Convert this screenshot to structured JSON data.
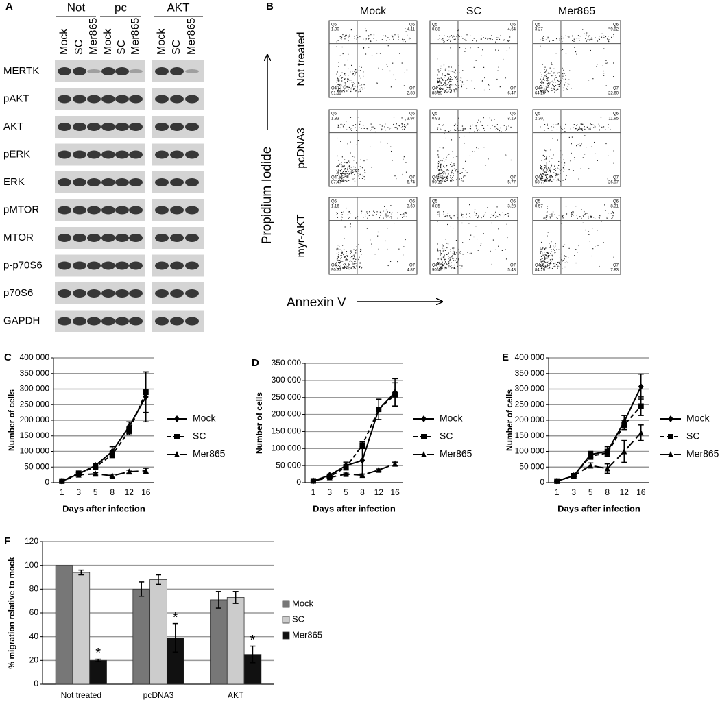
{
  "blot": {
    "label": "A",
    "groups": [
      "Not",
      "pc",
      "AKT"
    ],
    "lanes": [
      "Mock",
      "SC",
      "Mer865",
      "Mock",
      "SC",
      "Mer865",
      "Mock",
      "SC",
      "Mer865"
    ],
    "proteins": [
      "MERTK",
      "pAKT",
      "AKT",
      "pERK",
      "ERK",
      "pMTOR",
      "MTOR",
      "p-p70S6",
      "p70S6",
      "GAPDH"
    ]
  },
  "flow": {
    "label": "B",
    "columns": [
      "Mock",
      "SC",
      "Mer865"
    ],
    "rows": [
      "Not treated",
      "pcDNA3",
      "myr-AKT"
    ],
    "y_label": "Propidium Iodide",
    "x_label": "Annexin V",
    "quadrant_names": [
      "Q5",
      "Q6",
      "Q4",
      "Q7"
    ],
    "plots": [
      [
        [
          "1.90",
          "4.11",
          "91.11",
          "2.88"
        ],
        [
          "0.88",
          "4.64",
          "88.39",
          "6.47"
        ],
        [
          "3.27",
          "9.82",
          "64.26",
          "22.60"
        ]
      ],
      [
        [
          "1.83",
          "3.97",
          "87.47",
          "6.74"
        ],
        [
          "0.93",
          "3.19",
          "90.11",
          "5.77"
        ],
        [
          "2.30",
          "11.95",
          "58.77",
          "26.97"
        ]
      ],
      [
        [
          "1.16",
          "3.60",
          "90.37",
          "4.87"
        ],
        [
          "0.85",
          "3.23",
          "90.49",
          "5.43"
        ],
        [
          "0.57",
          "8.31",
          "84.29",
          "7.83"
        ]
      ]
    ]
  },
  "chart_data": [
    {
      "type": "line",
      "label": "C",
      "y_label": "Number of cells",
      "x_label": "Days after infection",
      "categories": [
        "1",
        "3",
        "5",
        "8",
        "12",
        "16"
      ],
      "ylim": [
        0,
        400000
      ],
      "yticks": [
        0,
        {
          "value": 50000,
          "label": "50 000"
        },
        {
          "value": 100000,
          "label": "100 000"
        },
        {
          "value": 150000,
          "label": "150 000"
        },
        {
          "value": 200000,
          "label": "200 000"
        },
        {
          "value": 250000,
          "label": "250 000"
        },
        {
          "value": 300000,
          "label": "300 000"
        },
        {
          "value": 350000,
          "label": "350 000"
        },
        {
          "value": 400000,
          "label": "400 000"
        }
      ],
      "grid": true,
      "series": [
        {
          "name": "Mock",
          "color": "#000000",
          "dash": "solid",
          "marker": "diamond",
          "values": [
            5000,
            28000,
            55000,
            100000,
            180000,
            275000
          ],
          "errors": [
            1000,
            4000,
            5000,
            15000,
            15000,
            80000
          ]
        },
        {
          "name": "SC",
          "color": "#000000",
          "dash": "dashed",
          "marker": "square",
          "values": [
            5000,
            30000,
            50000,
            90000,
            165000,
            290000
          ],
          "errors": [
            1000,
            3000,
            5000,
            10000,
            12000,
            65000
          ]
        },
        {
          "name": "Mer865",
          "color": "#000000",
          "dash": "long-dash",
          "marker": "triangle",
          "values": [
            5000,
            25000,
            28000,
            22000,
            35000,
            38000
          ],
          "errors": [
            1000,
            3000,
            4000,
            5000,
            5000,
            8000
          ]
        }
      ]
    },
    {
      "type": "line",
      "label": "D",
      "y_label": "Number of cells",
      "x_label": "Days after infection",
      "categories": [
        "1",
        "3",
        "5",
        "8",
        "12",
        "16"
      ],
      "ylim": [
        0,
        350000
      ],
      "yticks": [
        0,
        {
          "value": 50000,
          "label": "50 000"
        },
        {
          "value": 100000,
          "label": "100 000"
        },
        {
          "value": 150000,
          "label": "150 000"
        },
        {
          "value": 200000,
          "label": "200 000"
        },
        {
          "value": 250000,
          "label": "250 000"
        },
        {
          "value": 300000,
          "label": "300 000"
        },
        {
          "value": 350000,
          "label": "350 000"
        }
      ],
      "grid": true,
      "series": [
        {
          "name": "Mock",
          "color": "#000000",
          "dash": "solid",
          "marker": "diamond",
          "values": [
            5000,
            22000,
            50000,
            65000,
            215000,
            265000
          ],
          "errors": [
            1000,
            3000,
            10000,
            40000,
            30000,
            40000
          ]
        },
        {
          "name": "SC",
          "color": "#000000",
          "dash": "dashed",
          "marker": "square",
          "values": [
            5000,
            18000,
            45000,
            110000,
            215000,
            258000
          ],
          "errors": [
            1000,
            3000,
            8000,
            10000,
            30000,
            35000
          ]
        },
        {
          "name": "Mer865",
          "color": "#000000",
          "dash": "long-dash",
          "marker": "triangle",
          "values": [
            5000,
            15000,
            25000,
            22000,
            37000,
            55000
          ],
          "errors": [
            1000,
            2000,
            3000,
            3000,
            3000,
            5000
          ]
        }
      ]
    },
    {
      "type": "line",
      "label": "E",
      "y_label": "Number of cells",
      "x_label": "Days after infection",
      "categories": [
        "1",
        "3",
        "5",
        "8",
        "12",
        "16"
      ],
      "ylim": [
        0,
        400000
      ],
      "yticks": [
        0,
        {
          "value": 50000,
          "label": "50 000"
        },
        {
          "value": 100000,
          "label": "100 000"
        },
        {
          "value": 150000,
          "label": "150 000"
        },
        {
          "value": 200000,
          "label": "200 000"
        },
        {
          "value": 250000,
          "label": "250 000"
        },
        {
          "value": 300000,
          "label": "300 000"
        },
        {
          "value": 350000,
          "label": "350 000"
        },
        {
          "value": 400000,
          "label": "400 000"
        }
      ],
      "grid": true,
      "series": [
        {
          "name": "Mock",
          "color": "#000000",
          "dash": "solid",
          "marker": "diamond",
          "values": [
            5000,
            22000,
            90000,
            100000,
            195000,
            308000
          ],
          "errors": [
            1000,
            3000,
            10000,
            15000,
            20000,
            40000
          ]
        },
        {
          "name": "SC",
          "color": "#000000",
          "dash": "dashed",
          "marker": "square",
          "values": [
            5000,
            22000,
            85000,
            95000,
            185000,
            245000
          ],
          "errors": [
            1000,
            3000,
            10000,
            12000,
            15000,
            30000
          ]
        },
        {
          "name": "Mer865",
          "color": "#000000",
          "dash": "long-dash",
          "marker": "triangle",
          "values": [
            5000,
            22000,
            55000,
            45000,
            100000,
            160000
          ],
          "errors": [
            1000,
            3000,
            8000,
            15000,
            35000,
            25000
          ]
        }
      ]
    },
    {
      "type": "bar",
      "label": "F",
      "y_label": "% migration relative to mock",
      "categories": [
        "Not treated",
        "pcDNA3",
        "AKT"
      ],
      "ylim": [
        0,
        120
      ],
      "yticks": [
        0,
        20,
        40,
        60,
        80,
        100,
        120
      ],
      "grid": true,
      "series": [
        {
          "name": "Mock",
          "color": "#777777",
          "values": [
            100,
            80,
            71
          ],
          "errors": [
            0,
            6,
            7
          ]
        },
        {
          "name": "SC",
          "color": "#cccccc",
          "values": [
            94,
            88,
            73
          ],
          "errors": [
            2,
            4,
            5
          ]
        },
        {
          "name": "Mer865",
          "color": "#111111",
          "values": [
            20,
            39,
            25
          ],
          "errors": [
            1,
            12,
            7
          ],
          "significance": [
            "*",
            "*",
            "*"
          ]
        }
      ]
    }
  ]
}
